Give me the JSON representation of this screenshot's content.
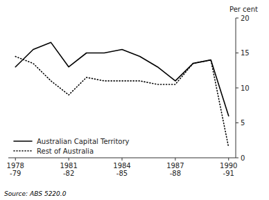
{
  "chart_data": {
    "type": "line",
    "categories": [
      "1978\n-79",
      null,
      null,
      "1981\n-82",
      null,
      null,
      "1984\n-85",
      null,
      null,
      "1987\n-88",
      null,
      null,
      "1990\n-91"
    ],
    "series": [
      {
        "name": "Australian Capital Territory",
        "color": "#000000",
        "line_style": "solid",
        "values": [
          13.0,
          15.5,
          16.5,
          13.0,
          15.0,
          15.0,
          15.5,
          14.5,
          13.0,
          11.0,
          13.5,
          14.0,
          6.0
        ]
      },
      {
        "name": "Rest of Australia",
        "color": "#000000",
        "line_style": "dotted",
        "values": [
          14.5,
          13.5,
          11.0,
          9.0,
          11.5,
          11.0,
          11.0,
          11.0,
          10.5,
          10.5,
          13.5,
          14.0,
          1.5
        ]
      }
    ],
    "y_label": "Per cent",
    "annotations": [
      "Source: ABS 5220.0"
    ],
    "ylim": [
      0,
      20
    ],
    "yticks": [
      0,
      5,
      10,
      15,
      20
    ],
    "grid": false,
    "legend": "lower left"
  }
}
